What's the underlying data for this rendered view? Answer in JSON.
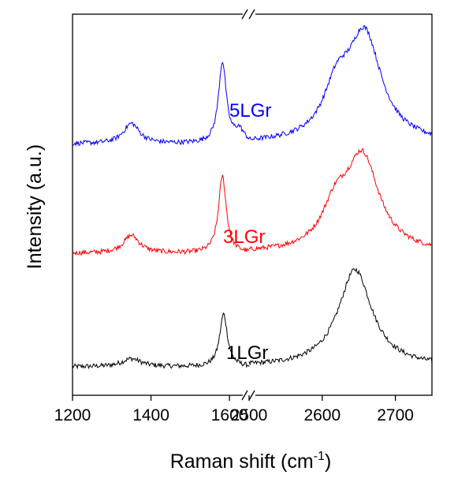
{
  "chart_data": {
    "type": "line",
    "xlabel": "Raman shift (cm",
    "xlabel_superscript": "-1",
    "xlabel_suffix": ")",
    "ylabel": "Intensity (a.u.)",
    "axis_break": true,
    "grid": false,
    "x_segments": [
      {
        "xlim": [
          1200,
          1650
        ],
        "ticks": [
          1200,
          1400,
          1600
        ]
      },
      {
        "xlim": [
          2500,
          2750
        ],
        "ticks": [
          2500,
          2600,
          2700
        ]
      }
    ],
    "tick_labels": [
      "1200",
      "1400",
      "1600",
      "2500",
      "2600",
      "2700"
    ],
    "ylim": [
      0,
      4.7
    ],
    "series": [
      {
        "name": "1LGr",
        "color": "#000000",
        "offset": 0.35,
        "peaks": [
          {
            "center": 1350,
            "height": 0.1,
            "width": 30
          },
          {
            "center": 1585,
            "height": 0.65,
            "width": 12
          },
          {
            "center": 2645,
            "height": 1.2,
            "width": 28
          }
        ]
      },
      {
        "name": "3LGr",
        "color": "#ff0000",
        "offset": 1.75,
        "peaks": [
          {
            "center": 1350,
            "height": 0.22,
            "width": 25
          },
          {
            "center": 1582,
            "height": 0.95,
            "width": 12
          },
          {
            "center": 2618,
            "height": 0.45,
            "width": 22
          },
          {
            "center": 2655,
            "height": 1.15,
            "width": 28
          }
        ]
      },
      {
        "name": "5LGr",
        "color": "#0000ff",
        "offset": 3.1,
        "peaks": [
          {
            "center": 1350,
            "height": 0.25,
            "width": 25
          },
          {
            "center": 1582,
            "height": 1.0,
            "width": 12
          },
          {
            "center": 1625,
            "height": 0.15,
            "width": 15
          },
          {
            "center": 2620,
            "height": 0.55,
            "width": 22
          },
          {
            "center": 2658,
            "height": 1.3,
            "width": 28
          }
        ]
      }
    ]
  }
}
